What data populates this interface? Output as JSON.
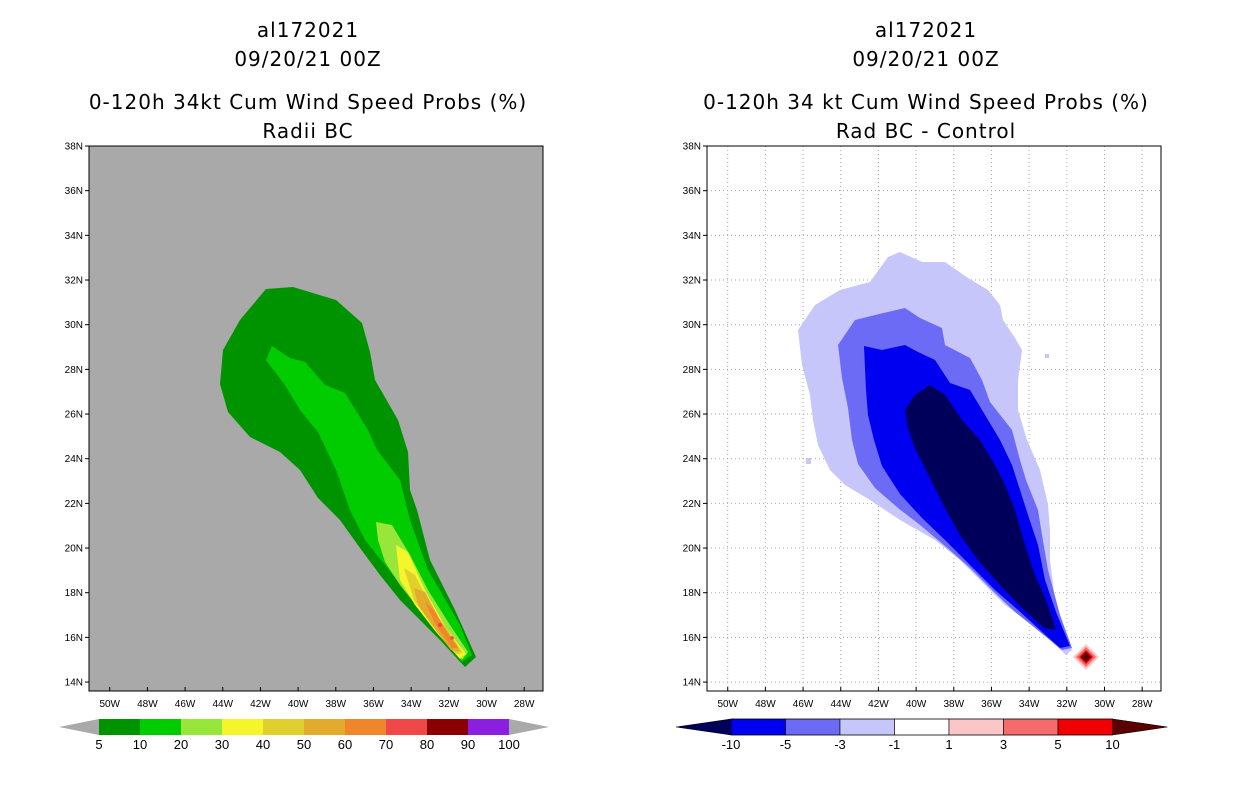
{
  "left_panel": {
    "titles": [
      "al172021",
      "09/20/21 00Z",
      "0-120h 34kt Cum Wind Speed Probs (%)",
      "Radii BC"
    ],
    "colorbar_labels": [
      "5",
      "10",
      "20",
      "30",
      "40",
      "50",
      "60",
      "70",
      "80",
      "90",
      "100"
    ],
    "colors": [
      "#009300",
      "#00cc00",
      "#99e63a",
      "#f5f52c",
      "#e0d02e",
      "#e2ab2e",
      "#ef862c",
      "#f04848",
      "#8a0000",
      "#8a1fe0"
    ],
    "background": "#a9a9a9"
  },
  "right_panel": {
    "titles": [
      "al172021",
      "09/20/21 00Z",
      "0-120h 34 kt Cum Wind Speed Probs (%)",
      "Rad BC - Control"
    ],
    "colorbar_labels": [
      "-10",
      "-5",
      "-3",
      "-1",
      "1",
      "3",
      "5",
      "10"
    ],
    "colors": [
      "#00005a",
      "#0000f0",
      "#6b6bf5",
      "#c6c6fb",
      "#ffffff",
      "#fbc6c6",
      "#f56b6b",
      "#f00000",
      "#5a0000"
    ]
  },
  "lat_labels": [
    "38N",
    "36N",
    "34N",
    "32N",
    "30N",
    "28N",
    "26N",
    "24N",
    "22N",
    "20N",
    "18N",
    "16N",
    "14N"
  ],
  "lon_labels": [
    "50W",
    "48W",
    "46W",
    "44W",
    "42W",
    "40W",
    "38W",
    "36W",
    "34W",
    "32W",
    "30W",
    "28W"
  ]
}
